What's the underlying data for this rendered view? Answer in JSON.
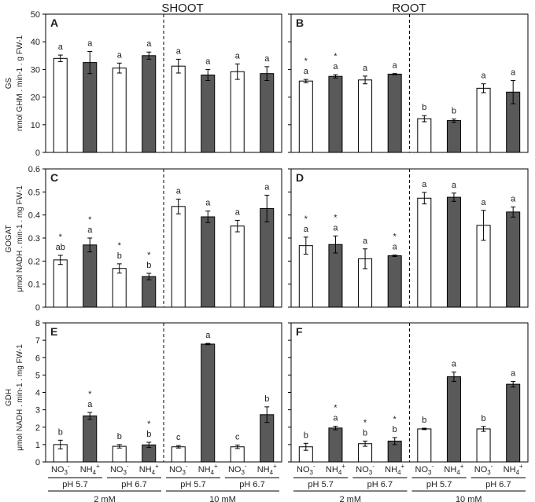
{
  "columns": [
    "SHOOT",
    "ROOT"
  ],
  "row_labels": [
    {
      "line1": "GS",
      "line2": "nmol GHM . min-1 . g FW-1"
    },
    {
      "line1": "GOGAT",
      "line2": "μmol NADH . min-1 . mg FW-1"
    },
    {
      "line1": "GDH",
      "line2": "μmol NADH . min-1 . mg FW-1"
    }
  ],
  "x_axis": {
    "categories": [
      "NO3-",
      "NH4+",
      "NO3-",
      "NH4+",
      "NO3-",
      "NH4+",
      "NO3-",
      "NH4+"
    ],
    "ph_groups": [
      "pH 5.7",
      "pH 6.7",
      "pH 5.7",
      "pH 6.7"
    ],
    "conc_groups": [
      "2 mM",
      "10 mM"
    ]
  },
  "colors": {
    "no3": "#ffffff",
    "nh4": "#595959",
    "stroke": "#000000"
  },
  "chart_data": [
    {
      "panel": "A",
      "type": "bar",
      "ylim": [
        0,
        50
      ],
      "yticks": [
        0,
        10,
        20,
        30,
        40,
        50
      ],
      "ytick_labels": [
        "0",
        "10",
        "20",
        "30",
        "40",
        "50"
      ],
      "values": [
        34,
        32.5,
        30.5,
        35,
        31.2,
        28,
        29.2,
        28.5
      ],
      "errors": [
        1.2,
        4,
        1.8,
        1.3,
        2.5,
        2,
        2.8,
        2.5
      ],
      "letters": [
        "a",
        "a",
        "a",
        "a",
        "a",
        "a",
        "a",
        "a"
      ],
      "stars": [
        false,
        false,
        false,
        false,
        false,
        false,
        false,
        false
      ]
    },
    {
      "panel": "B",
      "type": "bar",
      "ylim": [
        0,
        50
      ],
      "yticks": [
        0,
        10,
        20,
        30,
        40,
        50
      ],
      "ytick_labels": [
        "",
        "",
        "",
        "",
        "",
        ""
      ],
      "values": [
        25.8,
        27.5,
        26.2,
        28.3,
        12.2,
        11.5,
        23.2,
        21.8
      ],
      "errors": [
        0.6,
        0.6,
        1.4,
        0.2,
        1.1,
        0.6,
        1.6,
        4.2
      ],
      "letters": [
        "a",
        "a",
        "a",
        "a",
        "b",
        "b",
        "a",
        "a"
      ],
      "stars": [
        true,
        true,
        false,
        false,
        false,
        false,
        false,
        false
      ]
    },
    {
      "panel": "C",
      "type": "bar",
      "ylim": [
        0,
        0.6
      ],
      "yticks": [
        0,
        0.1,
        0.2,
        0.3,
        0.4,
        0.5,
        0.6
      ],
      "ytick_labels": [
        "0",
        "0.1",
        "0.2",
        "0.3",
        "0.4",
        "0.5",
        "0.6"
      ],
      "values": [
        0.205,
        0.27,
        0.168,
        0.133,
        0.437,
        0.392,
        0.352,
        0.428
      ],
      "errors": [
        0.02,
        0.03,
        0.02,
        0.014,
        0.032,
        0.025,
        0.025,
        0.058
      ],
      "letters": [
        "ab",
        "a",
        "b",
        "b",
        "a",
        "a",
        "a",
        "a"
      ],
      "stars": [
        true,
        true,
        true,
        true,
        false,
        false,
        false,
        false
      ]
    },
    {
      "panel": "D",
      "type": "bar",
      "ylim": [
        0,
        0.6
      ],
      "yticks": [
        0,
        0.1,
        0.2,
        0.3,
        0.4,
        0.5,
        0.6
      ],
      "ytick_labels": [
        "",
        "",
        "",
        "",
        "",
        "",
        ""
      ],
      "values": [
        0.267,
        0.272,
        0.21,
        0.223,
        0.473,
        0.477,
        0.355,
        0.413
      ],
      "errors": [
        0.037,
        0.037,
        0.043,
        0.003,
        0.025,
        0.018,
        0.065,
        0.022
      ],
      "letters": [
        "a",
        "a",
        "a",
        "a",
        "a",
        "a",
        "a",
        "a"
      ],
      "stars": [
        true,
        true,
        false,
        true,
        false,
        false,
        false,
        false
      ]
    },
    {
      "panel": "E",
      "type": "bar",
      "ylim": [
        0,
        8
      ],
      "yticks": [
        0,
        1,
        2,
        3,
        4,
        5,
        6,
        7,
        8
      ],
      "ytick_labels": [
        "0",
        "1",
        "2",
        "3",
        "4",
        "5",
        "6",
        "7",
        "8"
      ],
      "values": [
        1.0,
        2.65,
        0.9,
        0.98,
        0.87,
        6.78,
        0.87,
        2.72
      ],
      "errors": [
        0.25,
        0.2,
        0.1,
        0.15,
        0.07,
        0.04,
        0.1,
        0.45
      ],
      "letters": [
        "b",
        "a",
        "b",
        "b",
        "c",
        "a",
        "c",
        "b"
      ],
      "stars": [
        false,
        true,
        false,
        true,
        false,
        false,
        false,
        false
      ]
    },
    {
      "panel": "F",
      "type": "bar",
      "ylim": [
        0,
        8
      ],
      "yticks": [
        0,
        1,
        2,
        3,
        4,
        5,
        6,
        7,
        8
      ],
      "ytick_labels": [
        "",
        "",
        "",
        "",
        "",
        "",
        "",
        ""
      ],
      "values": [
        0.87,
        1.95,
        1.05,
        1.2,
        1.9,
        4.9,
        1.9,
        4.47
      ],
      "errors": [
        0.2,
        0.1,
        0.15,
        0.2,
        0.04,
        0.27,
        0.14,
        0.16
      ],
      "letters": [
        "b",
        "a",
        "b",
        "b",
        "b",
        "a",
        "b",
        "a"
      ],
      "stars": [
        false,
        true,
        true,
        true,
        false,
        false,
        false,
        false
      ]
    }
  ]
}
